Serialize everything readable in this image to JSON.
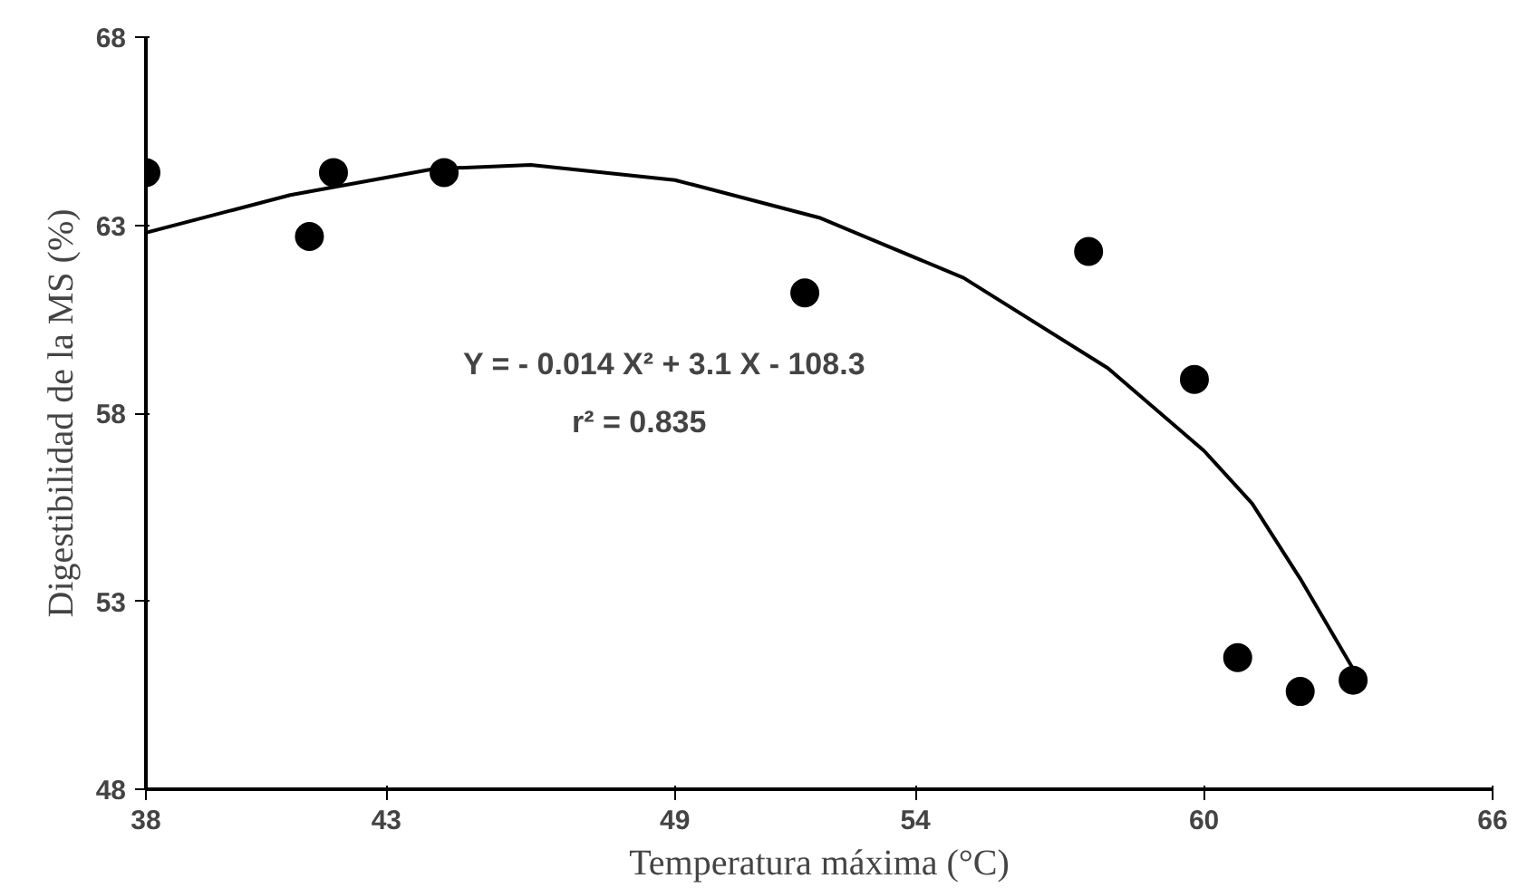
{
  "chart_data": {
    "type": "scatter",
    "xlabel": "Temperatura máxima (°C)",
    "ylabel": "Digestibilidad de la MS (%)",
    "x": [
      38,
      41.4,
      41.9,
      44.2,
      51.7,
      57.6,
      59.8,
      60.7,
      62.0,
      63.1
    ],
    "series": [
      {
        "color": "#000000",
        "values": [
          64.4,
          62.7,
          64.4,
          64.4,
          61.2,
          62.3,
          58.9,
          51.5,
          50.6,
          50.9
        ]
      },
      {
        "type": "line",
        "marker": "none",
        "color": "#000000",
        "x": [
          38,
          41,
          44,
          46,
          49,
          52,
          55,
          58,
          60,
          61,
          62,
          63.1
        ],
        "values": [
          62.8,
          63.8,
          64.5,
          64.6,
          64.2,
          63.2,
          61.6,
          59.2,
          57.0,
          55.6,
          53.6,
          51.2
        ]
      }
    ],
    "annotations": [
      "Y = - 0.014 X² + 3.1 X - 108.3",
      "r² = 0.835"
    ],
    "xlim": [
      38,
      66
    ],
    "ylim": [
      48,
      68
    ],
    "xticks": [
      38,
      43,
      49,
      54,
      60,
      66
    ],
    "yticks": [
      48,
      53,
      58,
      63,
      68
    ],
    "marker": "circle",
    "grid": false
  }
}
